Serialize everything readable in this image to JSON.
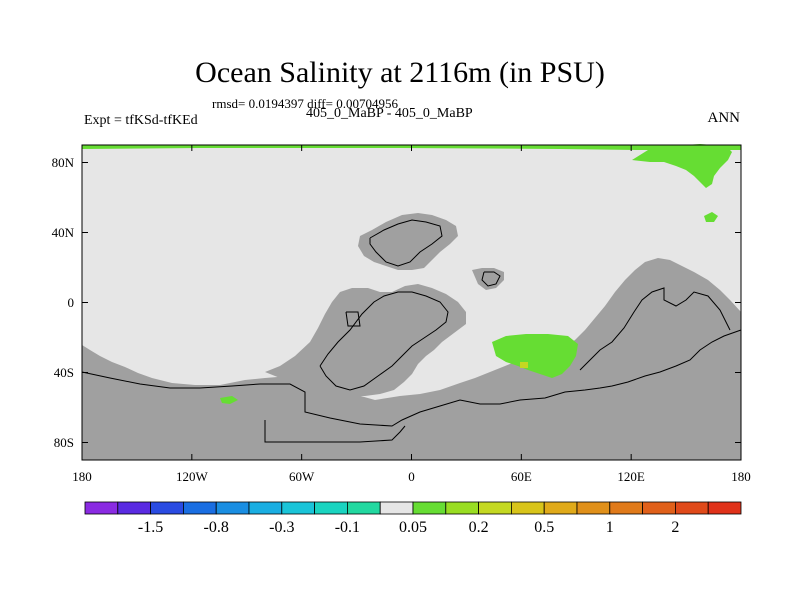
{
  "title": "Ocean Salinity at 2116m (in PSU)",
  "subtitle": "rmsd= 0.0194397 diff= 0.00704956",
  "left_label": "Expt = tfKSd-tfKEd",
  "center_label": "405_0_MaBP - 405_0_MaBP",
  "right_label": "ANN",
  "map": {
    "projection": "cylindrical-equidistant",
    "lon_range": [
      -180,
      180
    ],
    "lat_range": [
      -90,
      90
    ],
    "lat_ticks": [
      {
        "value": 80,
        "label": "80N"
      },
      {
        "value": 40,
        "label": "40N"
      },
      {
        "value": 0,
        "label": "0"
      },
      {
        "value": -40,
        "label": "40S"
      },
      {
        "value": -80,
        "label": "80S"
      }
    ],
    "lon_ticks": [
      {
        "value": -180,
        "label": "180"
      },
      {
        "value": -120,
        "label": "120W"
      },
      {
        "value": -60,
        "label": "60W"
      },
      {
        "value": 0,
        "label": "0"
      },
      {
        "value": 60,
        "label": "60E"
      },
      {
        "value": 120,
        "label": "120E"
      },
      {
        "value": 180,
        "label": "180"
      }
    ],
    "colors": {
      "ocean": "#e6e6e6",
      "land": "#a0a0a0",
      "positive_anomaly": "#66dd33",
      "coast": "#000000"
    }
  },
  "colorbar": {
    "colors": [
      "#8a2be2",
      "#5a2be2",
      "#2a4be2",
      "#1a6ee2",
      "#1a8ee2",
      "#1aaee2",
      "#1ac4d8",
      "#1ad4c0",
      "#22d8a0",
      "#e6e6e6",
      "#66dd33",
      "#99dd22",
      "#c4d822",
      "#d8c41a",
      "#e0aa1a",
      "#e0901a",
      "#e07a1a",
      "#e0601a",
      "#e04a1a",
      "#e0321a"
    ],
    "labels": [
      "-1.5",
      "-0.8",
      "-0.3",
      "-0.1",
      "0.05",
      "0.2",
      "0.5",
      "1",
      "2"
    ]
  }
}
